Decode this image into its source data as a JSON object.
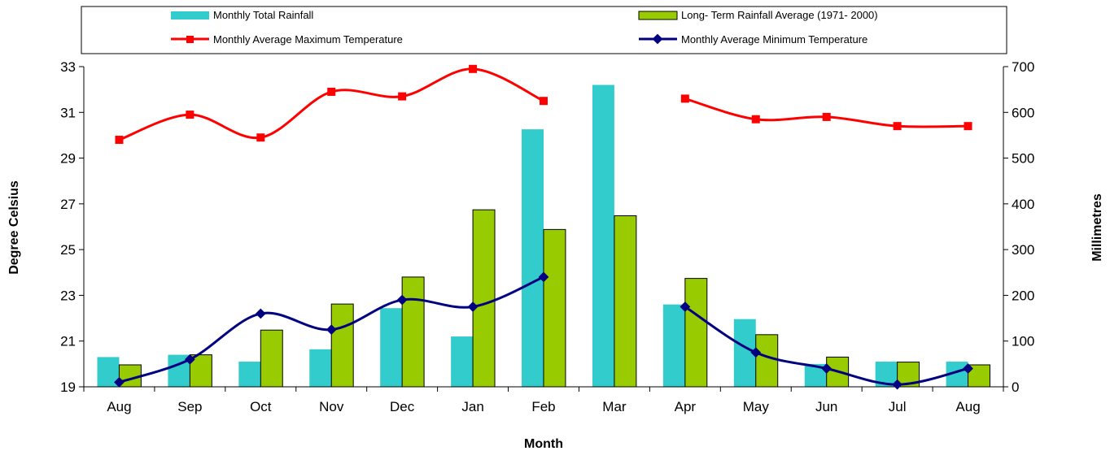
{
  "chart_data": {
    "type": "bar",
    "categories": [
      "Aug",
      "Sep",
      "Oct",
      "Nov",
      "Dec",
      "Jan",
      "Feb",
      "Mar",
      "Apr",
      "May",
      "Jun",
      "Jul",
      "Aug"
    ],
    "xlabel": "Month",
    "ylabel_left": "Degree Celsius",
    "ylabel_right": "Millimetres",
    "ylim_left": [
      19,
      33
    ],
    "yticks_left": [
      19,
      21,
      23,
      25,
      27,
      29,
      31,
      33
    ],
    "ylim_right": [
      0,
      700
    ],
    "yticks_right": [
      0,
      100,
      200,
      300,
      400,
      500,
      600,
      700
    ],
    "legend_position": "top",
    "gridlines": false,
    "series": [
      {
        "name": "Monthly Total Rainfall",
        "kind": "bar",
        "axis": "right",
        "color": "#33CCCC",
        "values": [
          65,
          70,
          55,
          82,
          172,
          110,
          563,
          660,
          180,
          148,
          50,
          55,
          55
        ]
      },
      {
        "name": "Long- Term Rainfall Average (1971- 2000)",
        "kind": "bar",
        "axis": "right",
        "color": "#99CC00",
        "values": [
          48,
          70,
          124,
          181,
          240,
          387,
          344,
          374,
          237,
          114,
          65,
          54,
          48
        ]
      },
      {
        "name": "Monthly Average Maximum Temperature",
        "kind": "line",
        "axis": "left",
        "color": "#FF0000",
        "values": [
          29.8,
          30.9,
          29.9,
          31.9,
          31.7,
          32.9,
          31.5,
          null,
          31.6,
          30.7,
          30.8,
          30.4,
          30.4
        ]
      },
      {
        "name": "Monthly Average Minimum Temperature",
        "kind": "line",
        "axis": "left",
        "color": "#000080",
        "values": [
          19.2,
          20.2,
          22.2,
          21.5,
          22.8,
          22.5,
          23.8,
          null,
          22.5,
          20.5,
          19.8,
          19.1,
          19.8
        ]
      }
    ]
  }
}
